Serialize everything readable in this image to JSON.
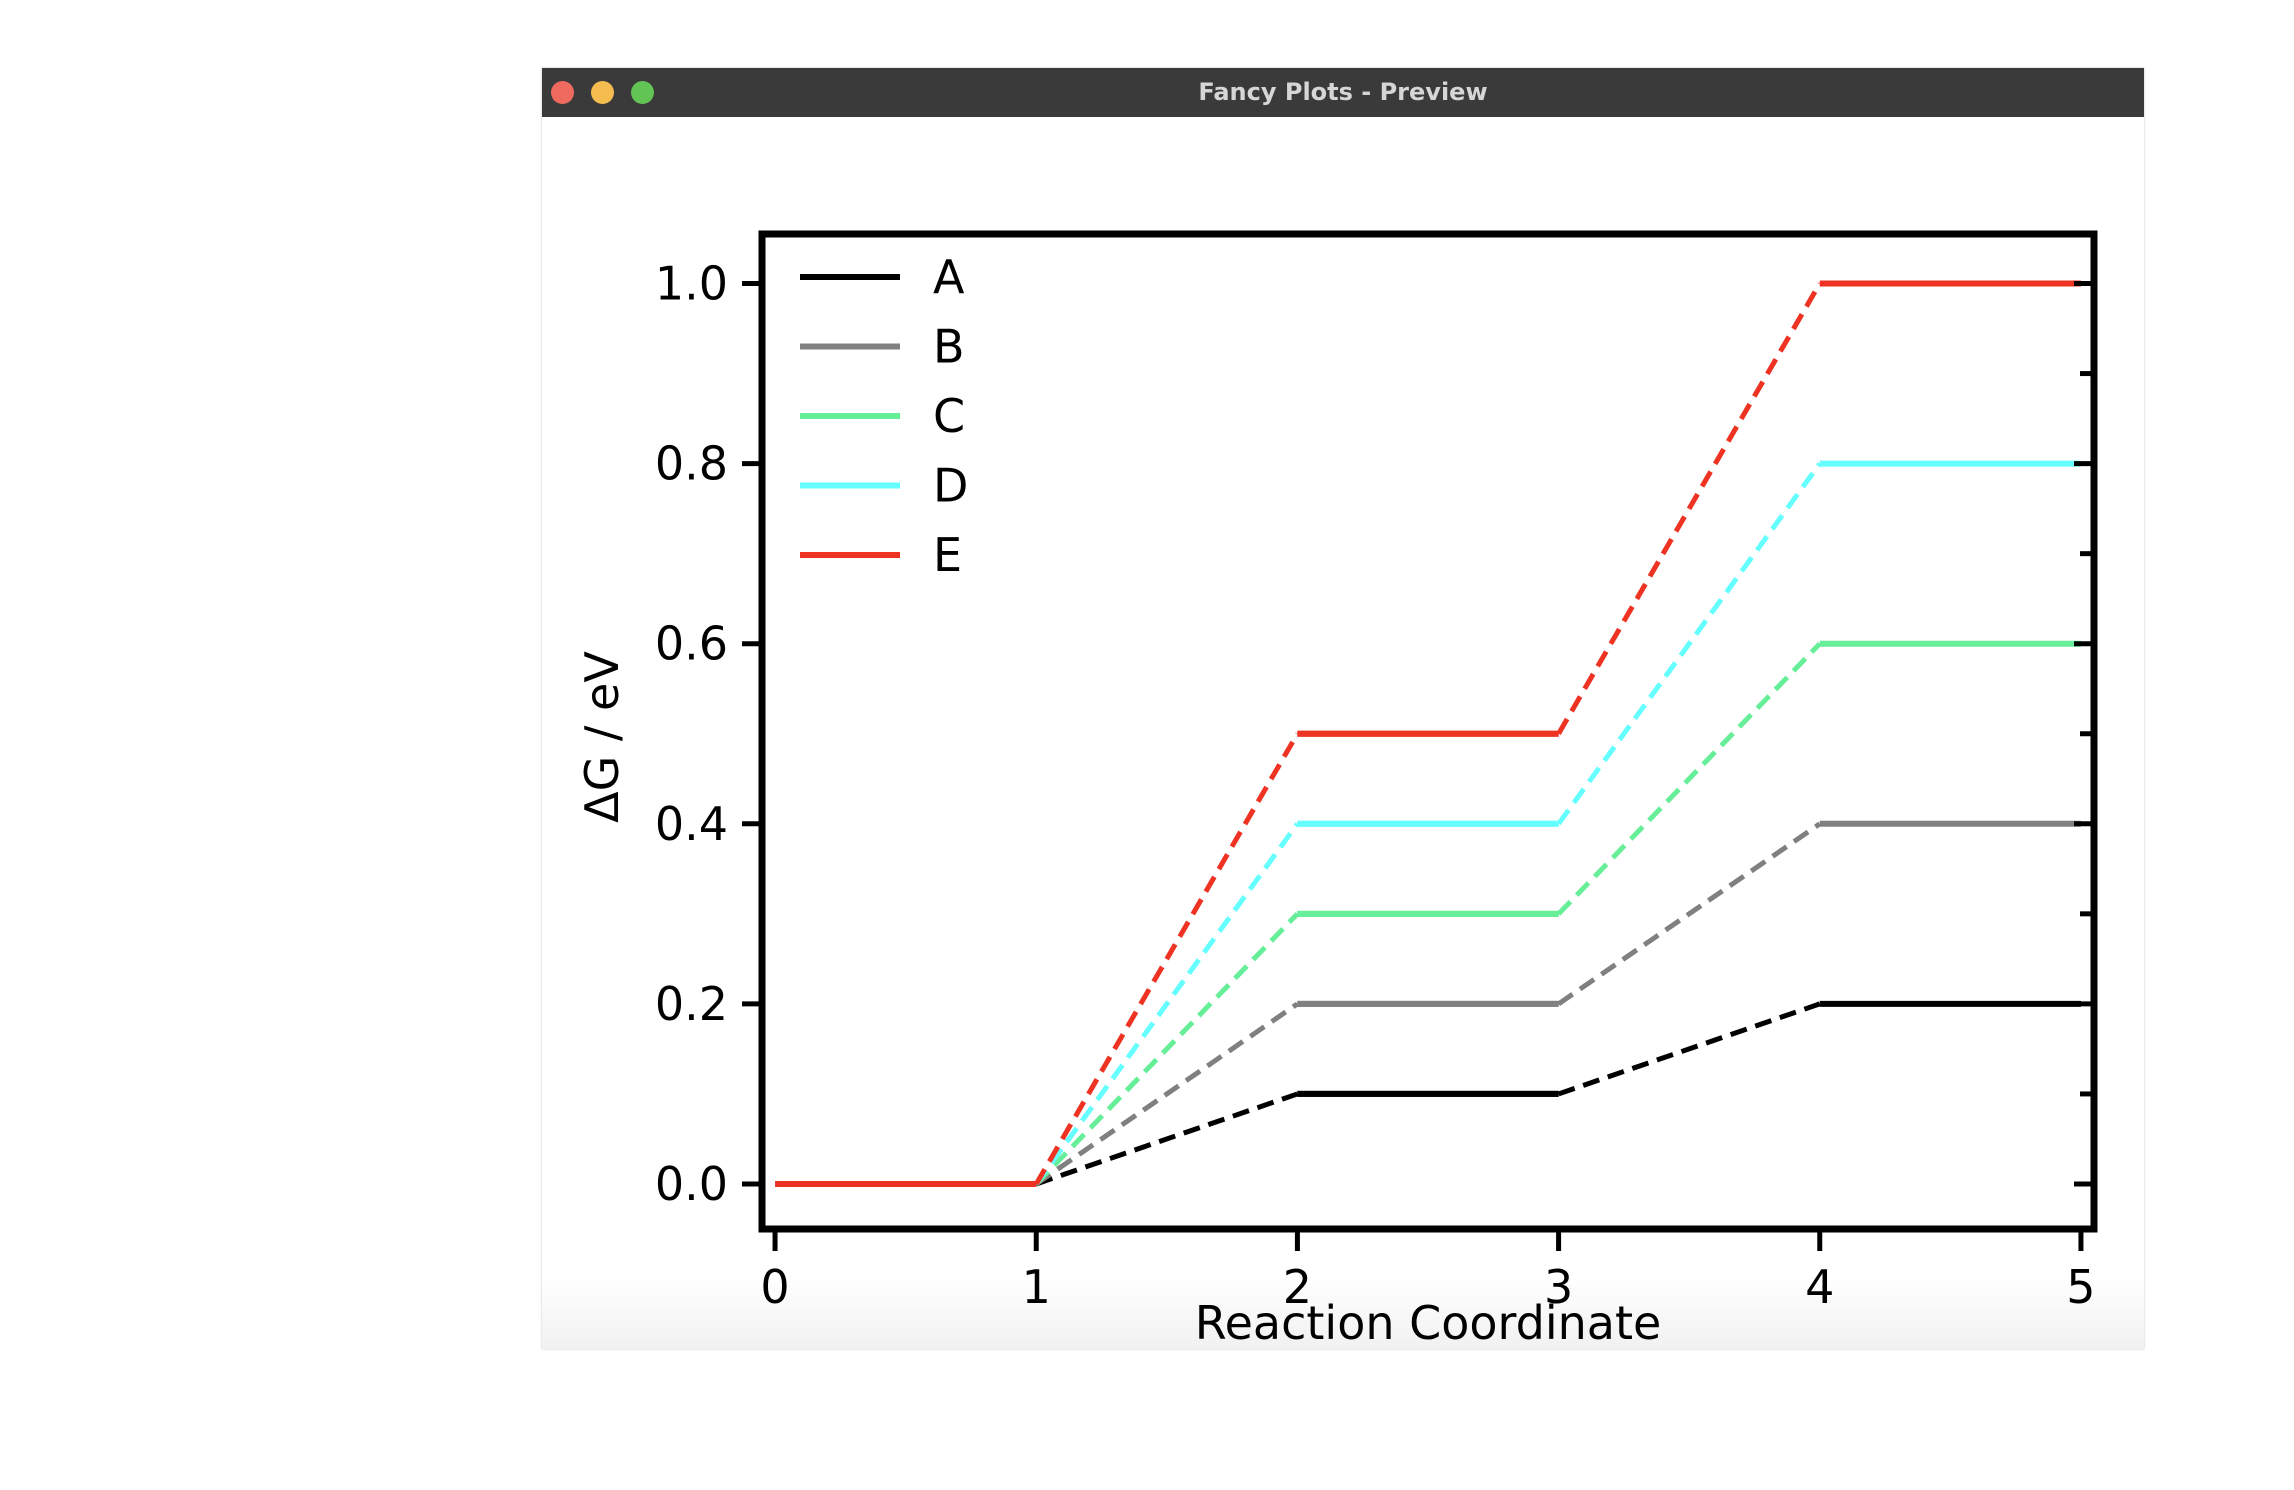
{
  "window": {
    "title": "Fancy Plots - Preview"
  },
  "colors": {
    "titlebar": "#3a3a3a",
    "close": "#ee6a5e",
    "minimize": "#f5bd4f",
    "zoom": "#61c454"
  },
  "chart_data": {
    "type": "line",
    "title": "",
    "xlabel": "Reaction Coordinate",
    "ylabel": "ΔG / eV",
    "xlim": [
      -0.05,
      5.05
    ],
    "ylim": [
      -0.05,
      1.055
    ],
    "xticks": [
      "0",
      "1",
      "2",
      "3",
      "4",
      "5"
    ],
    "yticks": [
      "0.0",
      "0.2",
      "0.4",
      "0.6",
      "0.8",
      "1.0"
    ],
    "grid": false,
    "legend_position": "top-left",
    "line_style": "solid plateaus joined by dashed connectors",
    "plateaus": [
      [
        0,
        1
      ],
      [
        1,
        1
      ],
      [
        2,
        3
      ],
      [
        2,
        3
      ],
      [
        4,
        5
      ]
    ],
    "series": [
      {
        "name": "A",
        "color": "#000000",
        "levels": [
          0.0,
          0.0,
          0.1,
          0.1,
          0.2
        ]
      },
      {
        "name": "B",
        "color": "#808080",
        "levels": [
          0.0,
          0.0,
          0.2,
          0.2,
          0.4
        ]
      },
      {
        "name": "C",
        "color": "#66ee99",
        "levels": [
          0.0,
          0.0,
          0.3,
          0.3,
          0.6
        ]
      },
      {
        "name": "D",
        "color": "#66ffff",
        "levels": [
          0.0,
          0.0,
          0.4,
          0.4,
          0.8
        ]
      },
      {
        "name": "E",
        "color": "#ee3322",
        "levels": [
          0.0,
          0.0,
          0.5,
          0.5,
          1.0
        ]
      }
    ]
  }
}
